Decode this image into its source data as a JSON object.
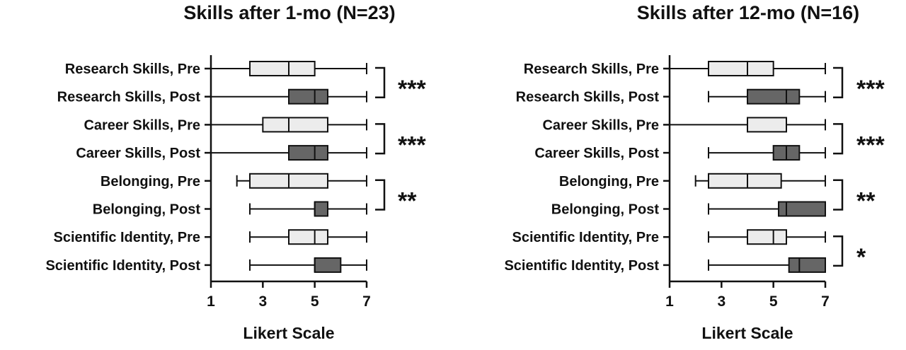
{
  "chart_data": [
    {
      "type": "boxplot",
      "title": "Skills after 1-mo (N=23)",
      "xlabel": "Likert Scale",
      "xlim": [
        1,
        7
      ],
      "xticks": [
        "1",
        "3",
        "5",
        "7"
      ],
      "grid": false,
      "categories": [
        "Research Skills, Pre",
        "Research Skills, Post",
        "Career Skills, Pre",
        "Career Skills, Post",
        "Belonging, Pre",
        "Belonging, Post",
        "Scientific Identity, Pre",
        "Scientific Identity, Post"
      ],
      "boxes": [
        {
          "label": "Research Skills, Pre",
          "min": 1,
          "q1": 2.5,
          "median": 4,
          "q3": 5,
          "max": 7,
          "fill": "pre"
        },
        {
          "label": "Research Skills, Post",
          "min": 1,
          "q1": 4,
          "median": 5,
          "q3": 5.5,
          "max": 7,
          "fill": "post"
        },
        {
          "label": "Career Skills, Pre",
          "min": 1,
          "q1": 3,
          "median": 4,
          "q3": 5.5,
          "max": 7,
          "fill": "pre"
        },
        {
          "label": "Career Skills, Post",
          "min": 1,
          "q1": 4,
          "median": 5,
          "q3": 5.5,
          "max": 7,
          "fill": "post"
        },
        {
          "label": "Belonging, Pre",
          "min": 2,
          "q1": 2.5,
          "median": 4,
          "q3": 5.5,
          "max": 7,
          "fill": "pre"
        },
        {
          "label": "Belonging, Post",
          "min": 2.5,
          "q1": 5,
          "median": 5,
          "q3": 5.5,
          "max": 7,
          "fill": "post"
        },
        {
          "label": "Scientific Identity, Pre",
          "min": 2.5,
          "q1": 4,
          "median": 5,
          "q3": 5.5,
          "max": 7,
          "fill": "pre"
        },
        {
          "label": "Scientific Identity, Post",
          "min": 2.5,
          "q1": 5,
          "median": 5,
          "q3": 6,
          "max": 7,
          "fill": "post"
        }
      ],
      "significance": [
        {
          "pair": [
            0,
            1
          ],
          "label": "***"
        },
        {
          "pair": [
            2,
            3
          ],
          "label": "***"
        },
        {
          "pair": [
            4,
            5
          ],
          "label": "**"
        }
      ]
    },
    {
      "type": "boxplot",
      "title": "Skills after 12-mo (N=16)",
      "xlabel": "Likert Scale",
      "xlim": [
        1,
        7
      ],
      "xticks": [
        "1",
        "3",
        "5",
        "7"
      ],
      "grid": false,
      "categories": [
        "Research Skills, Pre",
        "Research Skills, Post",
        "Career Skills, Pre",
        "Career Skills, Post",
        "Belonging, Pre",
        "Belonging, Post",
        "Scientific Identity, Pre",
        "Scientific Identity, Post"
      ],
      "boxes": [
        {
          "label": "Research Skills, Pre",
          "min": 1,
          "q1": 2.5,
          "median": 4,
          "q3": 5,
          "max": 7,
          "fill": "pre"
        },
        {
          "label": "Research Skills, Post",
          "min": 2.5,
          "q1": 4,
          "median": 5.5,
          "q3": 6,
          "max": 7,
          "fill": "post"
        },
        {
          "label": "Career Skills, Pre",
          "min": 1,
          "q1": 4,
          "median": 4,
          "q3": 5.5,
          "max": 7,
          "fill": "pre"
        },
        {
          "label": "Career Skills, Post",
          "min": 2.5,
          "q1": 5,
          "median": 5.5,
          "q3": 6,
          "max": 7,
          "fill": "post"
        },
        {
          "label": "Belonging, Pre",
          "min": 2,
          "q1": 2.5,
          "median": 4,
          "q3": 5.3,
          "max": 7,
          "fill": "pre"
        },
        {
          "label": "Belonging, Post",
          "min": 2.5,
          "q1": 5.2,
          "median": 5.5,
          "q3": 7,
          "max": 7,
          "fill": "post"
        },
        {
          "label": "Scientific Identity, Pre",
          "min": 2.5,
          "q1": 4,
          "median": 5,
          "q3": 5.5,
          "max": 7,
          "fill": "pre"
        },
        {
          "label": "Scientific Identity, Post",
          "min": 2.5,
          "q1": 5.6,
          "median": 6,
          "q3": 7,
          "max": 7,
          "fill": "post"
        }
      ],
      "significance": [
        {
          "pair": [
            0,
            1
          ],
          "label": "***"
        },
        {
          "pair": [
            2,
            3
          ],
          "label": "***"
        },
        {
          "pair": [
            4,
            5
          ],
          "label": "**"
        },
        {
          "pair": [
            6,
            7
          ],
          "label": "*"
        }
      ]
    }
  ],
  "colors": {
    "pre_fill": "#ececec",
    "post_fill": "#666666",
    "stroke": "#111111"
  }
}
